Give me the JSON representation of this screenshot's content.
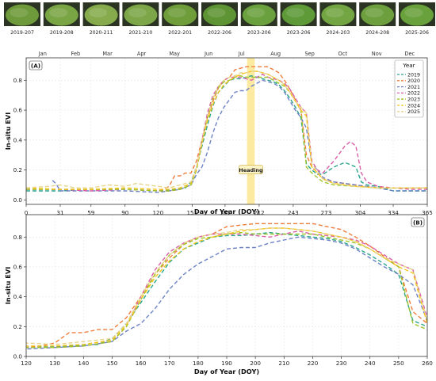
{
  "photos": [
    {
      "label": "2019-207",
      "tint": "#6f9a3b"
    },
    {
      "label": "2019-208",
      "tint": "#7aa545"
    },
    {
      "label": "2020-211",
      "tint": "#86ab4c"
    },
    {
      "label": "2021-210",
      "tint": "#7ca648"
    },
    {
      "label": "2022-201",
      "tint": "#6e9d3a"
    },
    {
      "label": "2022-206",
      "tint": "#5f9434"
    },
    {
      "label": "2023-206",
      "tint": "#6aa13e"
    },
    {
      "label": "2023-206",
      "tint": "#5e9a38"
    },
    {
      "label": "2024-203",
      "tint": "#73a643"
    },
    {
      "label": "2024-208",
      "tint": "#6e9f3f"
    },
    {
      "label": "2025-206",
      "tint": "#69a13c"
    }
  ],
  "chart_data": [
    {
      "panel_label": "(A)",
      "type": "line",
      "xlabel": "Day of Year (DOY)",
      "ylabel": "In-situ EVI",
      "xlim": [
        0,
        365
      ],
      "ylim": [
        -0.03,
        0.95
      ],
      "x_ticks": [
        0,
        31,
        59,
        90,
        120,
        151,
        181,
        212,
        243,
        273,
        304,
        334,
        365
      ],
      "y_ticks": [
        0.0,
        0.2,
        0.4,
        0.6,
        0.8
      ],
      "months": [
        {
          "name": "Jan",
          "doy": 15
        },
        {
          "name": "Feb",
          "doy": 45
        },
        {
          "name": "Mar",
          "doy": 74
        },
        {
          "name": "Apr",
          "doy": 105
        },
        {
          "name": "May",
          "doy": 135
        },
        {
          "name": "Jun",
          "doy": 166
        },
        {
          "name": "Jul",
          "doy": 196
        },
        {
          "name": "Aug",
          "doy": 227
        },
        {
          "name": "Sep",
          "doy": 258
        },
        {
          "name": "Oct",
          "doy": 288
        },
        {
          "name": "Nov",
          "doy": 319
        },
        {
          "name": "Dec",
          "doy": 349
        }
      ],
      "annotation": {
        "text": "Heading",
        "x_range": [
          201,
          208
        ],
        "y": 0.2
      },
      "grid": true,
      "legend": {
        "title": "Year",
        "position": "top-right"
      },
      "series": [
        {
          "name": "2019",
          "color": "#2ca58d",
          "x": [
            0,
            31,
            59,
            90,
            120,
            135,
            145,
            150,
            155,
            160,
            165,
            170,
            175,
            180,
            185,
            190,
            195,
            200,
            205,
            210,
            215,
            220,
            225,
            230,
            235,
            240,
            245,
            250,
            255,
            260,
            265,
            270,
            280,
            290,
            300,
            305,
            310,
            320,
            334,
            350,
            365
          ],
          "y": [
            0.06,
            0.06,
            0.07,
            0.07,
            0.06,
            0.07,
            0.08,
            0.12,
            0.22,
            0.36,
            0.5,
            0.63,
            0.72,
            0.76,
            0.8,
            0.81,
            0.81,
            0.82,
            0.83,
            0.82,
            0.81,
            0.8,
            0.79,
            0.77,
            0.73,
            0.68,
            0.62,
            0.55,
            0.24,
            0.2,
            0.17,
            0.17,
            0.22,
            0.25,
            0.22,
            0.12,
            0.1,
            0.09,
            0.06,
            0.06,
            0.06
          ]
        },
        {
          "name": "2020",
          "color": "#f07c3c",
          "x": [
            0,
            31,
            59,
            90,
            120,
            125,
            130,
            135,
            140,
            145,
            150,
            155,
            160,
            165,
            170,
            175,
            180,
            185,
            190,
            195,
            200,
            205,
            210,
            215,
            220,
            225,
            230,
            235,
            240,
            245,
            250,
            255,
            260,
            270,
            280,
            300,
            320,
            334,
            350,
            365
          ],
          "y": [
            0.07,
            0.07,
            0.07,
            0.07,
            0.06,
            0.07,
            0.09,
            0.16,
            0.16,
            0.18,
            0.18,
            0.26,
            0.4,
            0.55,
            0.66,
            0.75,
            0.8,
            0.82,
            0.87,
            0.88,
            0.89,
            0.89,
            0.89,
            0.89,
            0.89,
            0.87,
            0.85,
            0.8,
            0.74,
            0.67,
            0.6,
            0.3,
            0.22,
            0.14,
            0.12,
            0.1,
            0.08,
            0.08,
            0.08,
            0.08
          ]
        },
        {
          "name": "2021",
          "color": "#6d83c6",
          "x": [
            24,
            27,
            31,
            59,
            90,
            120,
            130,
            140,
            150,
            155,
            160,
            165,
            170,
            175,
            180,
            185,
            190,
            195,
            200,
            205,
            210,
            215,
            220,
            225,
            230,
            235,
            240,
            245,
            250,
            255,
            260,
            265,
            270,
            280,
            300,
            320,
            334,
            350,
            365
          ],
          "y": [
            0.13,
            0.11,
            0.06,
            0.06,
            0.06,
            0.05,
            0.06,
            0.07,
            0.1,
            0.17,
            0.22,
            0.32,
            0.45,
            0.55,
            0.62,
            0.67,
            0.72,
            0.73,
            0.73,
            0.76,
            0.78,
            0.8,
            0.79,
            0.78,
            0.76,
            0.72,
            0.66,
            0.6,
            0.55,
            0.48,
            0.24,
            0.2,
            0.15,
            0.12,
            0.1,
            0.08,
            0.06,
            0.06,
            0.06
          ]
        },
        {
          "name": "2022",
          "color": "#d95fa8",
          "x": [
            0,
            31,
            59,
            90,
            120,
            130,
            140,
            150,
            155,
            160,
            165,
            170,
            175,
            180,
            185,
            190,
            195,
            200,
            205,
            210,
            215,
            220,
            225,
            230,
            235,
            240,
            245,
            250,
            255,
            260,
            265,
            270,
            275,
            280,
            285,
            290,
            295,
            300,
            305,
            310,
            320,
            334,
            350,
            365
          ],
          "y": [
            0.07,
            0.07,
            0.06,
            0.07,
            0.06,
            0.06,
            0.07,
            0.1,
            0.2,
            0.4,
            0.58,
            0.7,
            0.76,
            0.8,
            0.82,
            0.82,
            0.82,
            0.81,
            0.8,
            0.82,
            0.84,
            0.82,
            0.81,
            0.8,
            0.78,
            0.74,
            0.68,
            0.62,
            0.58,
            0.26,
            0.2,
            0.18,
            0.22,
            0.26,
            0.31,
            0.36,
            0.39,
            0.36,
            0.18,
            0.12,
            0.09,
            0.08,
            0.07,
            0.07
          ]
        },
        {
          "name": "2023",
          "color": "#9dc62a",
          "x": [
            0,
            31,
            59,
            90,
            120,
            130,
            140,
            150,
            155,
            160,
            165,
            170,
            175,
            180,
            185,
            190,
            195,
            200,
            205,
            210,
            215,
            220,
            225,
            230,
            235,
            240,
            245,
            250,
            255,
            260,
            270,
            280,
            300,
            320,
            334,
            350,
            365
          ],
          "y": [
            0.07,
            0.07,
            0.07,
            0.07,
            0.06,
            0.06,
            0.07,
            0.1,
            0.2,
            0.38,
            0.55,
            0.68,
            0.75,
            0.79,
            0.8,
            0.82,
            0.83,
            0.82,
            0.82,
            0.82,
            0.82,
            0.82,
            0.8,
            0.78,
            0.76,
            0.72,
            0.66,
            0.6,
            0.22,
            0.18,
            0.12,
            0.1,
            0.09,
            0.08,
            0.08,
            0.08,
            0.08
          ]
        },
        {
          "name": "2024",
          "color": "#f5c518",
          "x": [
            0,
            31,
            59,
            90,
            120,
            130,
            140,
            150,
            155,
            160,
            165,
            170,
            175,
            180,
            185,
            190,
            195,
            200,
            205,
            210,
            215,
            220,
            225,
            230,
            235,
            240,
            245,
            250,
            255,
            260,
            270,
            280,
            300,
            320,
            334,
            350,
            365
          ],
          "y": [
            0.08,
            0.07,
            0.07,
            0.08,
            0.07,
            0.07,
            0.08,
            0.11,
            0.21,
            0.38,
            0.53,
            0.64,
            0.72,
            0.77,
            0.8,
            0.82,
            0.84,
            0.85,
            0.86,
            0.86,
            0.85,
            0.84,
            0.82,
            0.8,
            0.77,
            0.72,
            0.66,
            0.6,
            0.56,
            0.22,
            0.14,
            0.11,
            0.09,
            0.08,
            0.08,
            0.08,
            0.08
          ]
        },
        {
          "name": "2025",
          "color": "#e7d48a",
          "x": [
            0,
            20,
            31,
            45,
            59,
            75,
            90,
            100,
            120,
            130,
            140,
            150,
            155,
            160,
            165,
            170,
            175,
            180,
            185,
            190,
            195,
            200,
            205,
            210,
            215,
            220,
            225,
            230,
            235,
            240,
            245,
            250,
            255,
            260,
            270,
            280,
            300,
            320,
            334,
            350,
            365
          ],
          "y": [
            0.08,
            0.09,
            0.1,
            0.08,
            0.08,
            0.1,
            0.09,
            0.11,
            0.09,
            0.08,
            0.1,
            0.12,
            0.22,
            0.4,
            0.56,
            0.68,
            0.76,
            0.8,
            0.82,
            0.83,
            0.85,
            0.85,
            0.86,
            0.86,
            0.85,
            0.84,
            0.82,
            0.8,
            0.77,
            0.72,
            0.66,
            0.62,
            0.58,
            0.24,
            0.14,
            0.11,
            0.09,
            0.08,
            0.08,
            0.08,
            0.08
          ]
        }
      ]
    },
    {
      "panel_label": "(B)",
      "type": "line",
      "xlabel": "Day of Year (DOY)",
      "ylabel": "In-situ EVI",
      "xlim": [
        120,
        260
      ],
      "ylim": [
        0.0,
        0.95
      ],
      "x_ticks": [
        120,
        130,
        140,
        150,
        160,
        170,
        180,
        190,
        200,
        210,
        220,
        230,
        240,
        250,
        260
      ],
      "y_ticks": [
        0.0,
        0.2,
        0.4,
        0.6,
        0.8
      ],
      "grid": true,
      "note": "same series as panel (A), zoomed"
    }
  ]
}
